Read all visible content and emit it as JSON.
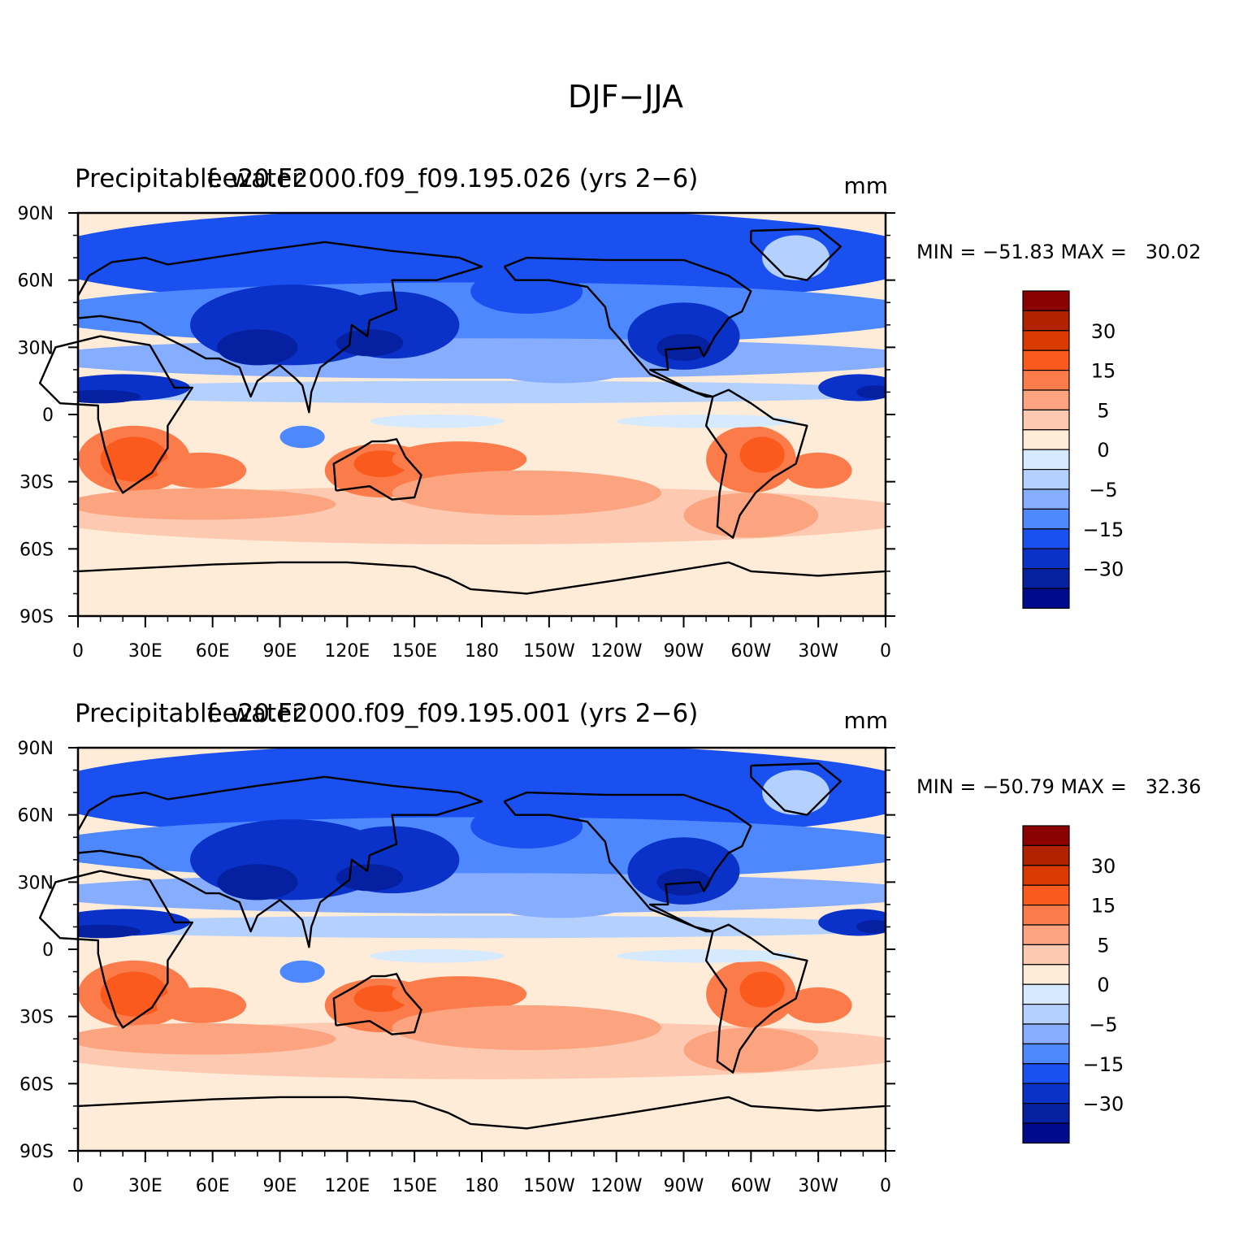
{
  "title": "DJF−JJA",
  "panels": [
    {
      "left_title": "Precipitable water",
      "center_title": "f.e20.F2000.f09_f09.195.026 (yrs 2−6)",
      "units": "mm",
      "stats": "MIN = −51.83 MAX =   30.02"
    },
    {
      "left_title": "Precipitable water",
      "center_title": "f.e20.F2000.f09_f09.195.001 (yrs 2−6)",
      "units": "mm",
      "stats": "MIN = −50.79 MAX =   32.36"
    }
  ],
  "axes": {
    "lat_ticks": [
      "90N",
      "60N",
      "30N",
      "0",
      "30S",
      "60S",
      "90S"
    ],
    "lon_ticks": [
      "0",
      "30E",
      "60E",
      "90E",
      "120E",
      "150E",
      "180",
      "150W",
      "120W",
      "90W",
      "60W",
      "30W",
      "0"
    ]
  },
  "colorbar": {
    "levels_labels": [
      "30",
      "15",
      "5",
      "0",
      "−5",
      "−15",
      "−30"
    ],
    "colors": [
      "#8b0000",
      "#b22200",
      "#d83a00",
      "#fa5a1e",
      "#fb7c4a",
      "#fca480",
      "#fdc9b0",
      "#feebd8",
      "#d6eaff",
      "#b3d0ff",
      "#86adff",
      "#4d88ff",
      "#1a50f0",
      "#0a32c8",
      "#0520a0",
      "#000a8c"
    ]
  },
  "colors": {
    "land_outline": "#000000",
    "strong_positive": "#d83a00",
    "strong_negative": "#0520a0"
  }
}
